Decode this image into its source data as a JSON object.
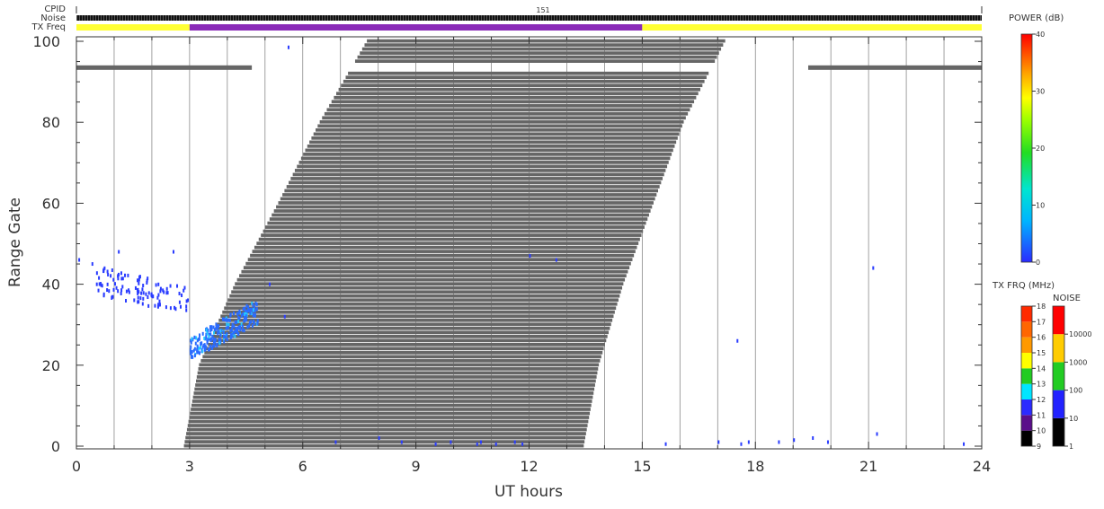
{
  "header": {
    "cpid_label": "CPID",
    "noise_label": "Noise",
    "txfreq_label": "TX Freq",
    "cpid_value": "151",
    "txfreq_segments": [
      {
        "start": 0,
        "end": 3,
        "color": "#ffff33"
      },
      {
        "start": 3,
        "end": 15,
        "color": "#8a2bb8"
      },
      {
        "start": 15,
        "end": 24,
        "color": "#ffff33"
      }
    ]
  },
  "chart_data": {
    "type": "heatmap",
    "xlabel": "UT hours",
    "ylabel": "Range Gate",
    "xlim": [
      0,
      24
    ],
    "ylim": [
      0,
      100
    ],
    "x_ticks": [
      "0",
      "3",
      "6",
      "9",
      "12",
      "15",
      "18",
      "21",
      "24"
    ],
    "y_ticks": [
      "0",
      "20",
      "40",
      "60",
      "80",
      "100"
    ],
    "grid": "vertical lines every hour",
    "ground_scatter_region": {
      "color": "#666666",
      "left_edge": [
        [
          0,
          2.85
        ],
        [
          20,
          3.25
        ],
        [
          40,
          4.2
        ],
        [
          60,
          5.35
        ],
        [
          80,
          6.45
        ],
        [
          100,
          7.7
        ]
      ],
      "right_edge": [
        [
          0,
          13.45
        ],
        [
          20,
          13.85
        ],
        [
          40,
          14.5
        ],
        [
          60,
          15.3
        ],
        [
          80,
          16.1
        ],
        [
          100,
          17.2
        ]
      ],
      "gap_gates": [
        93,
        94
      ]
    },
    "horizontal_bars": [
      {
        "x_start": 0,
        "x_end": 4.65,
        "gate": 93.5
      },
      {
        "x_start": 19.4,
        "x_end": 24,
        "gate": 93.5
      }
    ],
    "scatter_clusters": [
      {
        "x_start": 0.5,
        "x_end": 3.0,
        "gate_min": 33,
        "gate_max": 45,
        "color": "#2a3cff"
      },
      {
        "x_start": 3.0,
        "x_end": 4.8,
        "gate_min": 22,
        "gate_max": 37,
        "color": "#2a6bff"
      }
    ],
    "isolated_points": [
      [
        0.05,
        46
      ],
      [
        0.4,
        45
      ],
      [
        1.1,
        48
      ],
      [
        2.55,
        48
      ],
      [
        5.6,
        98.5
      ],
      [
        5.1,
        40
      ],
      [
        5.5,
        32
      ],
      [
        12.0,
        47
      ],
      [
        12.7,
        46
      ],
      [
        17.5,
        26
      ],
      [
        21.1,
        44
      ],
      [
        21.2,
        3
      ],
      [
        6.85,
        1
      ],
      [
        8.0,
        2
      ],
      [
        8.6,
        1
      ],
      [
        9.5,
        0.5
      ],
      [
        9.9,
        1
      ],
      [
        10.6,
        0.5
      ],
      [
        10.7,
        1
      ],
      [
        11.1,
        0.5
      ],
      [
        11.6,
        1
      ],
      [
        11.8,
        0.5
      ],
      [
        15.6,
        0.5
      ],
      [
        17.0,
        1
      ],
      [
        17.6,
        0.5
      ],
      [
        17.8,
        1
      ],
      [
        18.6,
        1
      ],
      [
        19.0,
        1.5
      ],
      [
        19.5,
        2
      ],
      [
        19.9,
        1
      ],
      [
        23.5,
        0.5
      ]
    ],
    "power_colorbar": {
      "title": "POWER (dB)",
      "ticks": [
        "0",
        "10",
        "20",
        "30",
        "40"
      ],
      "min": 0,
      "max": 40
    },
    "txfreq_colorbar": {
      "title": "TX FRQ (MHz)",
      "ticks": [
        "9",
        "10",
        "11",
        "12",
        "13",
        "14",
        "15",
        "16",
        "17",
        "18"
      ],
      "colors": [
        "#000000",
        "#5a0f8a",
        "#2b2bff",
        "#00e5ff",
        "#22cc22",
        "#ffff00",
        "#ff9900",
        "#ff6600",
        "#ff2a00"
      ]
    },
    "noise_colorbar": {
      "title": "NOISE",
      "ticks": [
        "1",
        "10",
        "100",
        "1000",
        "10000"
      ],
      "colors": [
        "#000000",
        "#2222ff",
        "#22cc22",
        "#ffcc00",
        "#ff0000"
      ]
    }
  }
}
